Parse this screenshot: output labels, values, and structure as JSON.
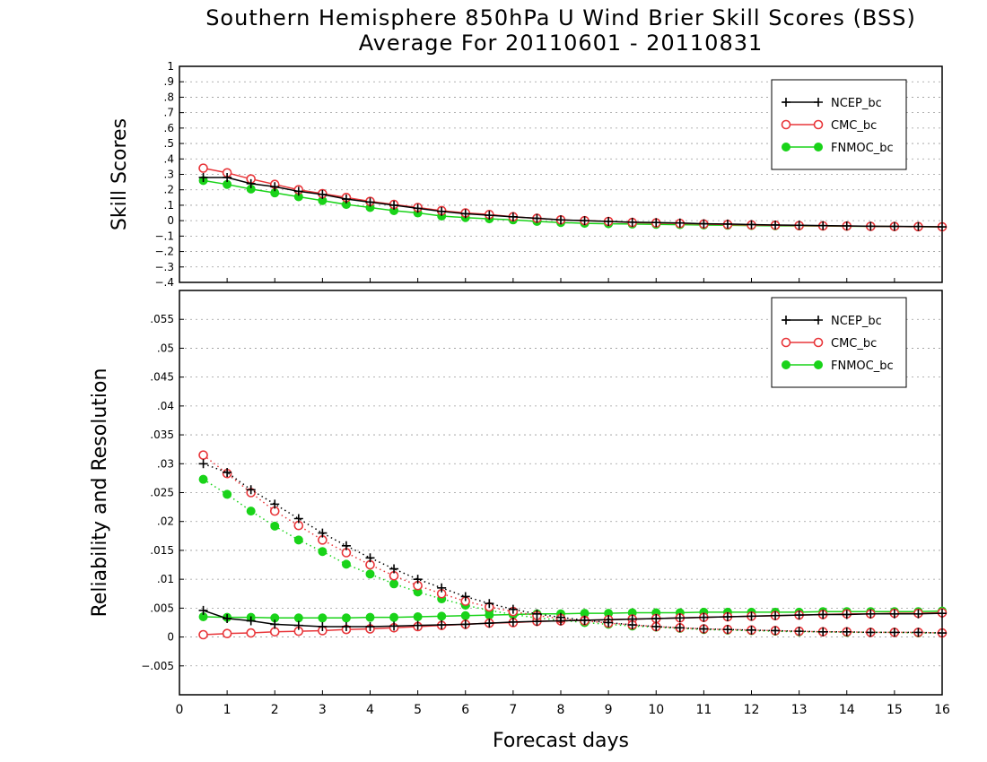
{
  "title_line1": "Southern Hemisphere 850hPa U Wind Brier Skill Scores (BSS)",
  "title_line2": "Average For 20110601 - 20110831",
  "xlabel": "Forecast days",
  "colors": {
    "NCEP_bc": "#000000",
    "CMC_bc": "#e8363a",
    "FNMOC_bc": "#19d319"
  },
  "chart_data": [
    {
      "type": "line",
      "ylabel": "Skill Scores",
      "xlim": [
        0,
        16
      ],
      "ylim": [
        -0.4,
        1
      ],
      "xticks": [
        0,
        1,
        2,
        3,
        4,
        5,
        6,
        7,
        8,
        9,
        10,
        11,
        12,
        13,
        14,
        15,
        16
      ],
      "yticks": [
        -0.4,
        -0.3,
        -0.2,
        -0.1,
        0,
        0.1,
        0.2,
        0.3,
        0.4,
        0.5,
        0.6,
        0.7,
        0.8,
        0.9,
        1
      ],
      "grid": true,
      "legend_placement": "top-right",
      "x": [
        0.5,
        1,
        1.5,
        2,
        2.5,
        3,
        3.5,
        4,
        4.5,
        5,
        5.5,
        6,
        6.5,
        7,
        7.5,
        8,
        8.5,
        9,
        9.5,
        10,
        10.5,
        11,
        11.5,
        12,
        12.5,
        13,
        13.5,
        14,
        14.5,
        15,
        15.5,
        16
      ],
      "series": [
        {
          "name": "NCEP_bc",
          "marker": "plus",
          "style": "solid",
          "values": [
            0.28,
            0.28,
            0.24,
            0.22,
            0.19,
            0.17,
            0.14,
            0.12,
            0.1,
            0.08,
            0.06,
            0.045,
            0.035,
            0.025,
            0.015,
            0.005,
            0.0,
            -0.005,
            -0.01,
            -0.012,
            -0.015,
            -0.02,
            -0.022,
            -0.025,
            -0.028,
            -0.03,
            -0.032,
            -0.034,
            -0.036,
            -0.037,
            -0.038,
            -0.04
          ]
        },
        {
          "name": "CMC_bc",
          "marker": "open-circle",
          "style": "solid",
          "values": [
            0.34,
            0.31,
            0.27,
            0.235,
            0.2,
            0.175,
            0.15,
            0.125,
            0.105,
            0.085,
            0.065,
            0.05,
            0.04,
            0.025,
            0.015,
            0.005,
            0.0,
            -0.005,
            -0.012,
            -0.015,
            -0.018,
            -0.022,
            -0.025,
            -0.028,
            -0.03,
            -0.032,
            -0.034,
            -0.035,
            -0.037,
            -0.038,
            -0.039,
            -0.04
          ]
        },
        {
          "name": "FNMOC_bc",
          "marker": "filled-circle",
          "style": "solid",
          "values": [
            0.26,
            0.235,
            0.205,
            0.18,
            0.155,
            0.13,
            0.105,
            0.085,
            0.065,
            0.05,
            0.03,
            0.02,
            0.012,
            0.005,
            -0.005,
            -0.012,
            -0.017,
            -0.02,
            -0.022,
            -0.024,
            -0.026,
            -0.028,
            -0.03,
            -0.032,
            -0.033,
            -0.034,
            -0.035,
            -0.036,
            -0.037,
            -0.038,
            -0.039,
            -0.04
          ]
        }
      ]
    },
    {
      "type": "line",
      "ylabel": "Reliability and Resolution",
      "xlim": [
        0,
        16
      ],
      "ylim": [
        -0.01,
        0.06
      ],
      "xticks": [
        0,
        1,
        2,
        3,
        4,
        5,
        6,
        7,
        8,
        9,
        10,
        11,
        12,
        13,
        14,
        15,
        16
      ],
      "yticks": [
        -0.005,
        0,
        0.005,
        0.01,
        0.015,
        0.02,
        0.025,
        0.03,
        0.035,
        0.04,
        0.045,
        0.05,
        0.055
      ],
      "grid": true,
      "legend_placement": "top-right",
      "x": [
        0.5,
        1,
        1.5,
        2,
        2.5,
        3,
        3.5,
        4,
        4.5,
        5,
        5.5,
        6,
        6.5,
        7,
        7.5,
        8,
        8.5,
        9,
        9.5,
        10,
        10.5,
        11,
        11.5,
        12,
        12.5,
        13,
        13.5,
        14,
        14.5,
        15,
        15.5,
        16
      ],
      "series": [
        {
          "name": "NCEP_bc",
          "component": "reliability",
          "marker": "plus",
          "style": "solid",
          "values": [
            0.0046,
            0.0032,
            0.0028,
            0.0022,
            0.002,
            0.0018,
            0.0018,
            0.0018,
            0.0019,
            0.002,
            0.0021,
            0.0022,
            0.0024,
            0.0026,
            0.0027,
            0.0028,
            0.0029,
            0.003,
            0.0031,
            0.0032,
            0.0033,
            0.0034,
            0.0035,
            0.0036,
            0.0037,
            0.0038,
            0.0039,
            0.0039,
            0.004,
            0.004,
            0.004,
            0.0041
          ]
        },
        {
          "name": "NCEP_bc",
          "component": "resolution",
          "marker": "plus",
          "style": "dotted",
          "values": [
            0.03,
            0.0285,
            0.0255,
            0.023,
            0.0205,
            0.018,
            0.0158,
            0.0137,
            0.0118,
            0.01,
            0.0085,
            0.007,
            0.0058,
            0.0048,
            0.004,
            0.0034,
            0.0029,
            0.0025,
            0.0021,
            0.0018,
            0.0016,
            0.0014,
            0.0013,
            0.0012,
            0.0011,
            0.001,
            0.0009,
            0.0009,
            0.0008,
            0.0008,
            0.0008,
            0.0007
          ]
        },
        {
          "name": "CMC_bc",
          "component": "reliability",
          "marker": "open-circle",
          "style": "solid",
          "values": [
            0.0004,
            0.0006,
            0.0007,
            0.0009,
            0.001,
            0.0011,
            0.0013,
            0.0014,
            0.0016,
            0.0018,
            0.002,
            0.0022,
            0.0024,
            0.0025,
            0.0027,
            0.0028,
            0.0029,
            0.003,
            0.0031,
            0.0032,
            0.0033,
            0.0034,
            0.0035,
            0.0036,
            0.0037,
            0.0038,
            0.0039,
            0.004,
            0.004,
            0.0041,
            0.0041,
            0.0042
          ]
        },
        {
          "name": "CMC_bc",
          "component": "resolution",
          "marker": "open-circle",
          "style": "dotted",
          "values": [
            0.0315,
            0.0283,
            0.025,
            0.0218,
            0.0193,
            0.0168,
            0.0146,
            0.0125,
            0.0106,
            0.0089,
            0.0075,
            0.0062,
            0.0052,
            0.0044,
            0.0037,
            0.0032,
            0.0028,
            0.0024,
            0.0021,
            0.0018,
            0.0016,
            0.0014,
            0.0013,
            0.0012,
            0.0011,
            0.001,
            0.0009,
            0.0009,
            0.0008,
            0.0008,
            0.0008,
            0.0007
          ]
        },
        {
          "name": "FNMOC_bc",
          "component": "reliability",
          "marker": "filled-circle",
          "style": "solid",
          "values": [
            0.0035,
            0.0034,
            0.0034,
            0.0033,
            0.0033,
            0.0033,
            0.0033,
            0.0034,
            0.0034,
            0.0035,
            0.0036,
            0.0037,
            0.0038,
            0.0039,
            0.004,
            0.004,
            0.0041,
            0.0041,
            0.0042,
            0.0042,
            0.0042,
            0.0043,
            0.0043,
            0.0043,
            0.0043,
            0.0043,
            0.0044,
            0.0044,
            0.0044,
            0.0044,
            0.0044,
            0.0045
          ]
        },
        {
          "name": "FNMOC_bc",
          "component": "resolution",
          "marker": "filled-circle",
          "style": "dotted",
          "values": [
            0.0273,
            0.0247,
            0.0218,
            0.0192,
            0.0168,
            0.0148,
            0.0126,
            0.0109,
            0.0092,
            0.0078,
            0.0066,
            0.0055,
            0.0046,
            0.0039,
            0.0033,
            0.0029,
            0.0025,
            0.0022,
            0.0019,
            0.0017,
            0.0015,
            0.0013,
            0.0012,
            0.0011,
            0.001,
            0.0009,
            0.0009,
            0.0008,
            0.0008,
            0.0008,
            0.0007,
            0.0007
          ]
        }
      ]
    }
  ]
}
